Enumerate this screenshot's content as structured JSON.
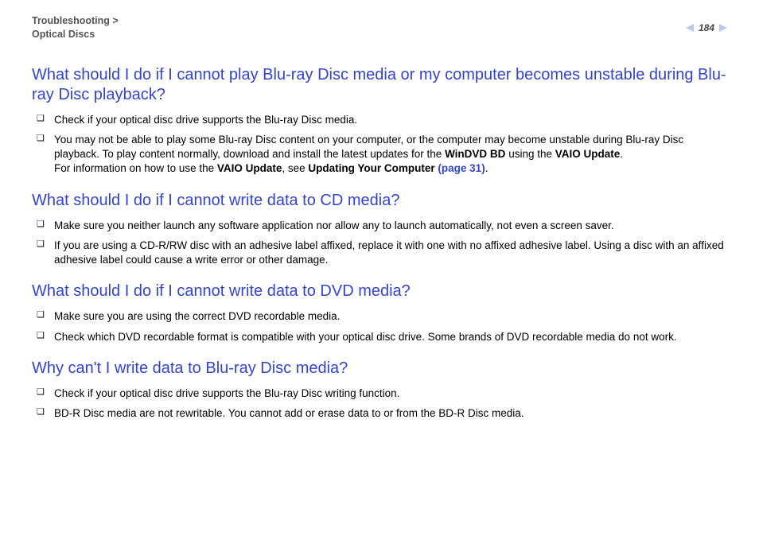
{
  "header": {
    "breadcrumb_line1": "Troubleshooting >",
    "breadcrumb_line2": "Optical Discs",
    "page_number": "184"
  },
  "colors": {
    "heading_color": "#3344cc",
    "link_color": "#3344cc",
    "breadcrumb_color": "#555555",
    "body_text": "#000000",
    "triangle_color": "#b8c8e8",
    "background": "#ffffff"
  },
  "sections": [
    {
      "heading": "What should I do if I cannot play Blu-ray Disc media or my computer becomes unstable during Blu-ray Disc playback?",
      "bullets": [
        {
          "html": "Check if your optical disc drive supports the Blu-ray Disc media."
        },
        {
          "html": "You may not be able to play some Blu-ray Disc content on your computer, or the computer may become unstable during Blu-ray Disc playback. To play content normally, download and install the latest updates for the <span class=\"bold\">WinDVD BD</span> using the <span class=\"bold\">VAIO Update</span>.<br>For information on how to use the <span class=\"bold\">VAIO Update</span>, see <span class=\"bold\">Updating Your Computer <span class=\"link\">(page 31)</span></span>."
        }
      ]
    },
    {
      "heading": "What should I do if I cannot write data to CD media?",
      "bullets": [
        {
          "html": "Make sure you neither launch any software application nor allow any to launch automatically, not even a screen saver."
        },
        {
          "html": "If you are using a CD-R/RW disc with an adhesive label affixed, replace it with one with no affixed adhesive label. Using a disc with an affixed adhesive label could cause a write error or other damage."
        }
      ]
    },
    {
      "heading": "What should I do if I cannot write data to DVD media?",
      "bullets": [
        {
          "html": "Make sure you are using the correct DVD recordable media."
        },
        {
          "html": "Check which DVD recordable format is compatible with your optical disc drive. Some brands of DVD recordable media do not work."
        }
      ]
    },
    {
      "heading": "Why can't I write data to Blu-ray Disc media?",
      "bullets": [
        {
          "html": "Check if your optical disc drive supports the Blu-ray Disc writing function."
        },
        {
          "html": "BD-R Disc media are not rewritable. You cannot add or erase data to or from the BD-R Disc media."
        }
      ]
    }
  ]
}
